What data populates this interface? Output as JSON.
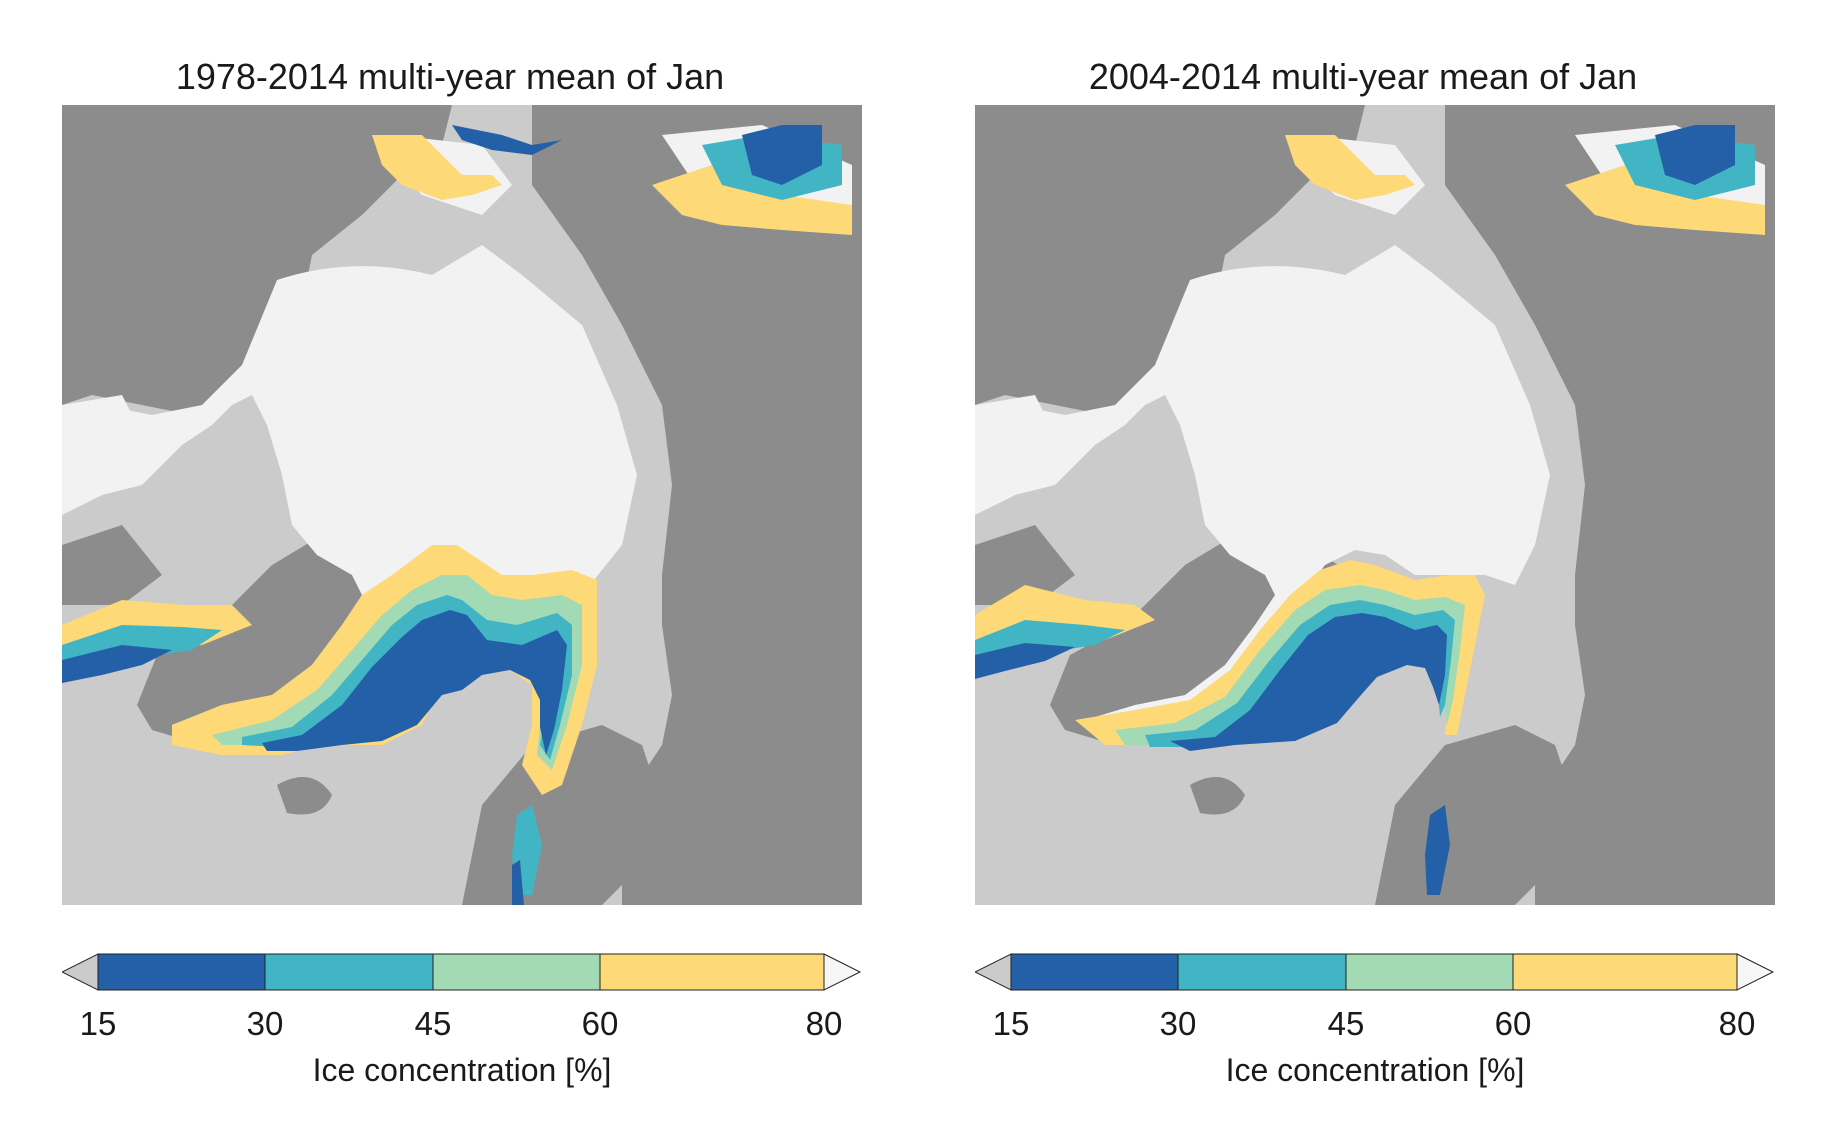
{
  "colors": {
    "ocean": "#cbcbcb",
    "land": "#8c8c8c",
    "ice_full": "#f2f2f2",
    "bin_15_30": "#2360a8",
    "bin_30_45": "#41b5c4",
    "bin_45_60": "#a1dab4",
    "bin_60_80": "#fed977",
    "under": "#cbcbcb",
    "over": "#f6f6f6"
  },
  "panels": [
    {
      "title": "1978-2014 multi-year mean of Jan",
      "colorbar": {
        "ticks": [
          "15",
          "30",
          "45",
          "60",
          "80"
        ],
        "label": "Ice concentration [%]"
      }
    },
    {
      "title": "2004-2014 multi-year mean of Jan",
      "colorbar": {
        "ticks": [
          "15",
          "30",
          "45",
          "60",
          "80"
        ],
        "label": "Ice concentration [%]"
      }
    }
  ],
  "chart_data": [
    {
      "type": "heatmap",
      "title": "1978-2014 multi-year mean of Jan",
      "variable": "Ice concentration [%]",
      "bins": [
        15,
        30,
        45,
        60,
        80
      ],
      "extend": "both",
      "bin_colors": [
        "#2360a8",
        "#41b5c4",
        "#a1dab4",
        "#fed977"
      ]
    },
    {
      "type": "heatmap",
      "title": "2004-2014 multi-year mean of Jan",
      "variable": "Ice concentration [%]",
      "bins": [
        15,
        30,
        45,
        60,
        80
      ],
      "extend": "both",
      "bin_colors": [
        "#2360a8",
        "#41b5c4",
        "#a1dab4",
        "#fed977"
      ]
    }
  ]
}
